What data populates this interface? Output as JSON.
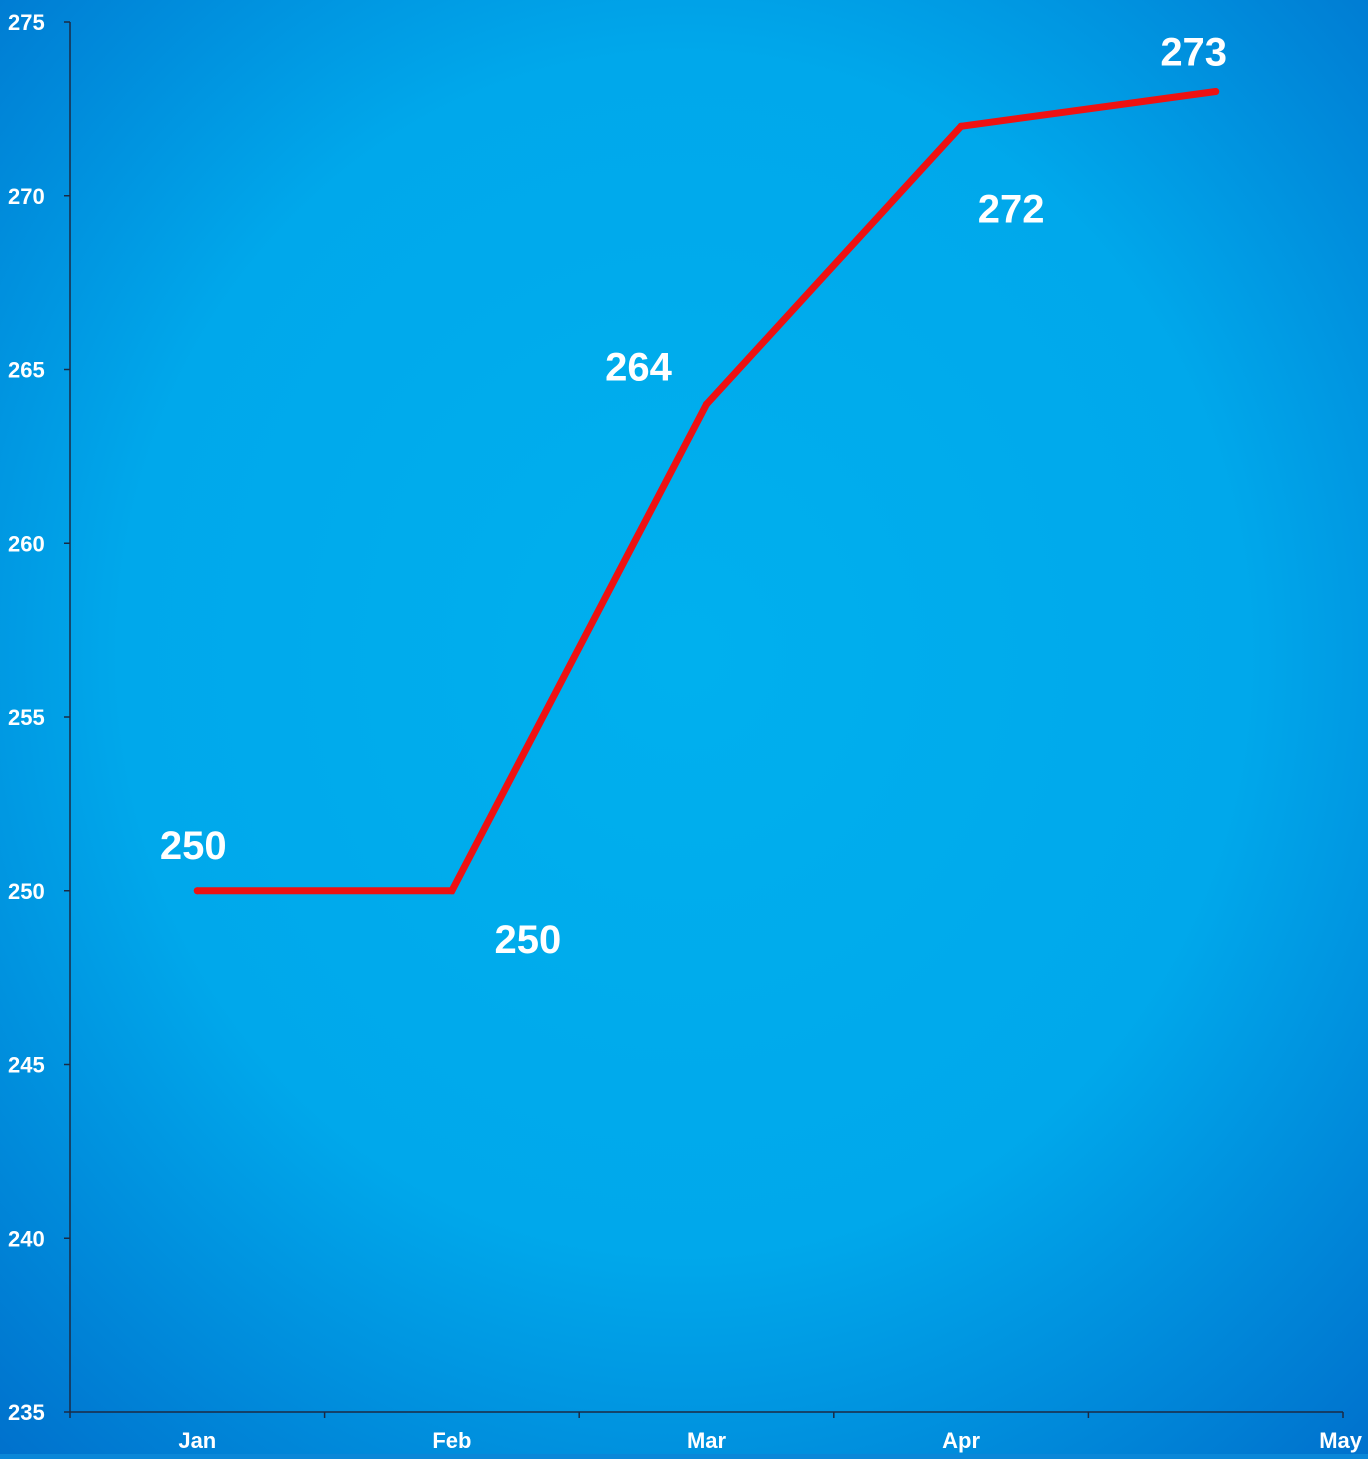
{
  "chart_data": {
    "type": "line",
    "categories": [
      "Jan",
      "Feb",
      "Mar",
      "Apr",
      "May"
    ],
    "series": [
      {
        "values": [
          250,
          250,
          264,
          272,
          273
        ]
      }
    ],
    "data_labels": [
      "250",
      "250",
      "264",
      "272",
      "273"
    ],
    "y_ticks": [
      "235",
      "240",
      "245",
      "250",
      "255",
      "260",
      "265",
      "270",
      "275"
    ],
    "ylim": [
      235,
      275
    ],
    "title": "",
    "xlabel": "",
    "ylabel": "",
    "grid": false,
    "legend": "none",
    "colors": {
      "line": "#ee1111",
      "background_center": "#00b0ee",
      "background_edge": "#0078d4",
      "text": "#ffffff",
      "axis": "#1a2a44"
    }
  }
}
